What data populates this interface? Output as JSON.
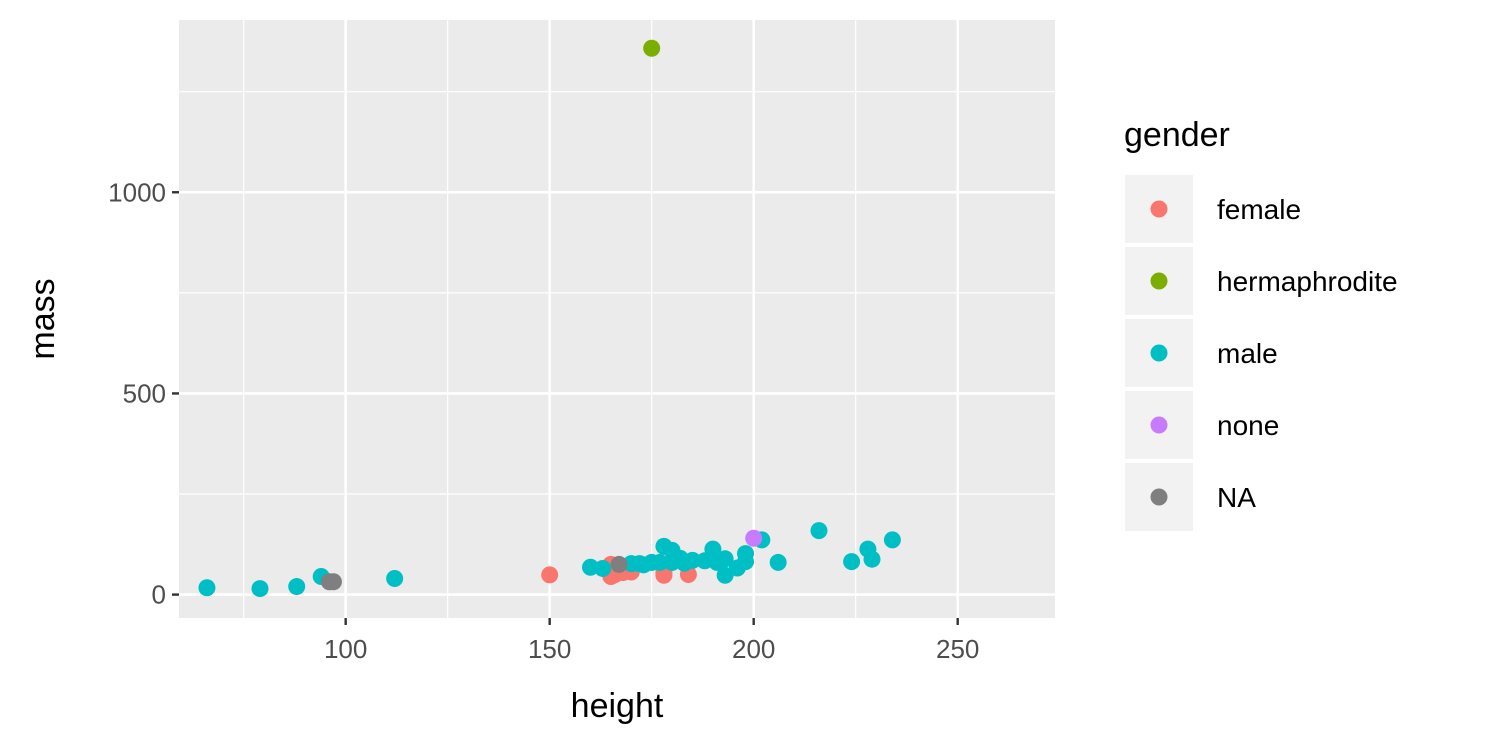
{
  "chart_data": {
    "type": "scatter",
    "xlabel": "height",
    "ylabel": "mass",
    "xlim": [
      59.15,
      273.85
    ],
    "ylim": [
      -58.15,
      1428.15
    ],
    "x_ticks": [
      100,
      150,
      200,
      250
    ],
    "y_ticks": [
      0,
      500,
      1000
    ],
    "grid": true,
    "legend": {
      "title": "gender",
      "placement": "right"
    },
    "series": [
      {
        "name": "female",
        "color": "#F8766D",
        "points": [
          [
            150,
            49
          ],
          [
            165,
            75
          ],
          [
            166,
            50
          ],
          [
            165,
            45
          ],
          [
            168,
            55
          ],
          [
            170,
            56.2
          ],
          [
            178,
            55
          ],
          [
            178,
            48
          ],
          [
            184,
            50
          ]
        ]
      },
      {
        "name": "hermaphrodite",
        "color": "#7CAE00",
        "points": [
          [
            175,
            1358
          ]
        ]
      },
      {
        "name": "male",
        "color": "#00BFC4",
        "points": [
          [
            66,
            17
          ],
          [
            79,
            15
          ],
          [
            88,
            20
          ],
          [
            94,
            45
          ],
          [
            112,
            40
          ],
          [
            160,
            68
          ],
          [
            163,
            65
          ],
          [
            170,
            77
          ],
          [
            172,
            77
          ],
          [
            173,
            74
          ],
          [
            175,
            80
          ],
          [
            177,
            80
          ],
          [
            178,
            120
          ],
          [
            180,
            110
          ],
          [
            180,
            80
          ],
          [
            182,
            90
          ],
          [
            183,
            79
          ],
          [
            183,
            78.2
          ],
          [
            185,
            85
          ],
          [
            188,
            84
          ],
          [
            190,
            113
          ],
          [
            191,
            80
          ],
          [
            193,
            48
          ],
          [
            193,
            89
          ],
          [
            196,
            66
          ],
          [
            198,
            82
          ],
          [
            198,
            102
          ],
          [
            202,
            136
          ],
          [
            206,
            80
          ],
          [
            216,
            159
          ],
          [
            224,
            82
          ],
          [
            228,
            113
          ],
          [
            229,
            88
          ],
          [
            234,
            136
          ]
        ]
      },
      {
        "name": "none",
        "color": "#C77CFF",
        "points": [
          [
            200,
            140
          ]
        ]
      },
      {
        "name": "NA",
        "color": "#7F7F7F",
        "points": [
          [
            96,
            32
          ],
          [
            97,
            32
          ],
          [
            167,
            75
          ]
        ]
      }
    ]
  }
}
